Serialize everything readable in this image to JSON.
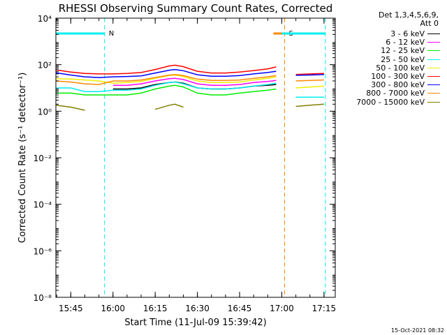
{
  "chart_data": {
    "type": "line",
    "title": "RHESSI Observing Summary Count Rates, Corrected",
    "xlabel": "Start Time (11-Jul-09 15:39:42)",
    "ylabel": "Corrected Count Rate (s⁻¹ detector⁻¹)",
    "ylim": [
      1e-08,
      10000
    ],
    "yscale": "log",
    "y_ticks": [
      {
        "value": 1e-08,
        "label": "10⁻⁸"
      },
      {
        "value": 1e-06,
        "label": "10⁻⁶"
      },
      {
        "value": 0.0001,
        "label": "10⁻⁴"
      },
      {
        "value": 0.01,
        "label": "10⁻²"
      },
      {
        "value": 1,
        "label": "10⁰"
      },
      {
        "value": 100,
        "label": "10²"
      },
      {
        "value": 10000,
        "label": "10⁴"
      }
    ],
    "xlim": [
      "15:39:42",
      "17:19:00"
    ],
    "x_ticks": [
      "15:45",
      "16:00",
      "16:15",
      "16:30",
      "16:45",
      "17:00",
      "17:15"
    ],
    "x": [
      "15:39:42",
      "15:45",
      "15:50",
      "15:55",
      "16:00",
      "16:05",
      "16:10",
      "16:15",
      "16:20",
      "16:22",
      "16:25",
      "16:30",
      "16:35",
      "16:40",
      "16:45",
      "16:50",
      "16:55",
      "16:58",
      "17:00",
      "17:05",
      "17:10",
      "17:15"
    ],
    "series": [
      {
        "name": "3 - 6 keV",
        "color": "#000000",
        "values": [
          null,
          null,
          null,
          null,
          9,
          9,
          10,
          14,
          17,
          18,
          16,
          10,
          9,
          9,
          10,
          12,
          13,
          14,
          null,
          null,
          null,
          null
        ]
      },
      {
        "name": "6 - 12 keV",
        "color": "#ff00ff",
        "values": [
          null,
          null,
          null,
          null,
          13,
          13,
          15,
          20,
          25,
          26,
          23,
          15,
          13,
          13,
          14,
          17,
          19,
          21,
          null,
          null,
          null,
          null
        ]
      },
      {
        "name": "12 - 25 keV",
        "color": "#00ee00",
        "values": [
          6,
          6,
          5,
          5,
          5,
          5,
          6,
          9,
          12,
          13,
          11,
          6,
          5,
          5,
          6,
          7,
          8,
          9,
          null,
          null,
          null,
          null
        ]
      },
      {
        "name": "25 - 50 keV",
        "color": "#00eeee",
        "values": [
          10,
          10,
          7,
          7,
          8,
          8,
          9,
          13,
          17,
          18,
          15,
          10,
          9,
          9,
          10,
          12,
          14,
          16,
          null,
          4,
          4,
          4
        ]
      },
      {
        "name": "50 - 100 keV",
        "color": "#eeee00",
        "values": [
          25,
          24,
          22,
          20,
          16,
          17,
          19,
          26,
          34,
          36,
          31,
          20,
          17,
          17,
          18,
          22,
          26,
          30,
          null,
          10,
          11,
          12
        ]
      },
      {
        "name": "100 - 300 keV",
        "color": "#ff0000",
        "values": [
          60,
          48,
          42,
          40,
          40,
          42,
          46,
          62,
          88,
          95,
          82,
          52,
          44,
          44,
          48,
          56,
          66,
          80,
          null,
          38,
          40,
          42
        ]
      },
      {
        "name": "300 - 800 keV",
        "color": "#0000ff",
        "values": [
          45,
          36,
          30,
          28,
          30,
          31,
          33,
          44,
          58,
          62,
          55,
          37,
          32,
          32,
          34,
          40,
          46,
          52,
          null,
          35,
          36,
          38
        ]
      },
      {
        "name": "800 - 7000 keV",
        "color": "#ff8800",
        "values": [
          20,
          18,
          15,
          14,
          20,
          20,
          22,
          28,
          36,
          38,
          34,
          24,
          21,
          21,
          22,
          26,
          30,
          34,
          null,
          20,
          21,
          22
        ]
      },
      {
        "name": "7000 - 15000 keV",
        "color": "#808000",
        "values": [
          1.8,
          1.5,
          1.1,
          null,
          null,
          null,
          null,
          1.2,
          1.8,
          2.0,
          1.5,
          null,
          null,
          null,
          null,
          null,
          null,
          null,
          null,
          1.6,
          1.8,
          2.0
        ]
      }
    ],
    "flags": [
      {
        "label": "N",
        "color": "#00eeee",
        "start": "15:39:42",
        "end": "15:57:00"
      },
      {
        "label": "S",
        "color": "#ff8800",
        "start": "16:57:00",
        "end": "17:01:00"
      },
      {
        "label": "",
        "color": "#00eeee",
        "start": "17:00:00",
        "end": "17:15:30"
      }
    ],
    "legend_header": [
      "Det 1,3,4,5,6,9,",
      "Att 0"
    ],
    "legend_position": "right",
    "grid": false,
    "footer_date": "15-Oct-2021 08:32"
  }
}
